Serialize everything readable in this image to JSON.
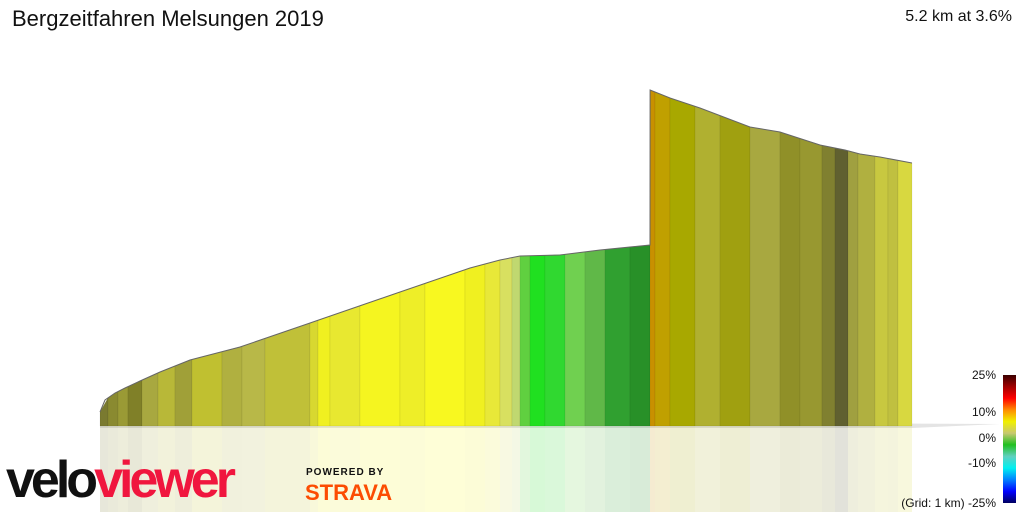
{
  "header": {
    "title": "Bergzeitfahren Melsungen 2019",
    "summary": "5.2 km at 3.6%"
  },
  "legend": {
    "labels": [
      "25%",
      "10%",
      "0%",
      "-10%",
      "-25%"
    ],
    "grid": "(Grid: 1 km)"
  },
  "branding": {
    "logo_part1": "velo",
    "logo_part2": "viewer",
    "powered_by": "POWERED BY",
    "strava": "STRAVA"
  },
  "colors": {
    "velo": "#111111",
    "viewer": "#f0163e",
    "strava": "#fc4c02"
  }
}
